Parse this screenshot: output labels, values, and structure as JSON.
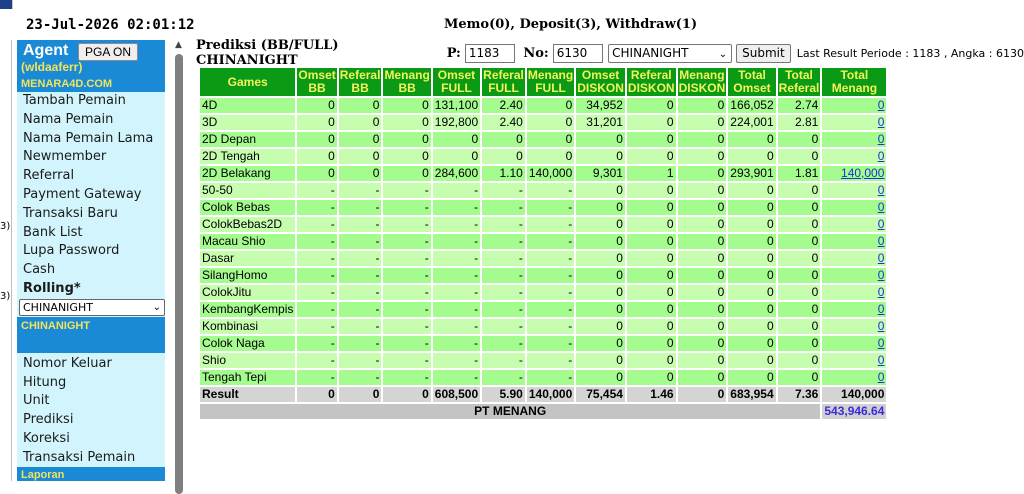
{
  "clock": "23-Jul-2026 02:01:12",
  "header": {
    "memo": "Memo(0), Deposit(3), Withdraw(1)"
  },
  "left_edge": {
    "ticks": [
      "3)",
      "3)"
    ]
  },
  "sidebar": {
    "agent_label": "Agent",
    "pga_button": "PGA ON",
    "username": "(wldaaferr)",
    "site": "MENARA4D.COM",
    "menu1": [
      "Tambah Pemain",
      "Nama Pemain",
      "Nama Pemain Lama",
      "Newmember",
      "Referral",
      "Payment Gateway",
      "Transaksi Baru",
      "Bank List",
      "Lupa Password",
      "Cash"
    ],
    "rolling": "Rolling*",
    "market_select": "CHINANIGHT",
    "market_header": "CHINANIGHT",
    "menu2": [
      "Nomor Keluar",
      "Hitung",
      "Unit",
      "Prediksi",
      "Koreksi",
      "Transaksi Pemain"
    ],
    "laporan": "Laporan"
  },
  "form": {
    "title": "Prediksi (BB/FULL) CHINANIGHT",
    "p_label": "P:",
    "p_value": "1183",
    "no_label": "No:",
    "no_value": "6130",
    "market": "CHINANIGHT",
    "submit": "Submit",
    "last_result": "Last Result Periode : 1183 , Angka : 6130"
  },
  "table": {
    "headers": [
      [
        "Games"
      ],
      [
        "Omset",
        "BB"
      ],
      [
        "Referal",
        "BB"
      ],
      [
        "Menang",
        "BB"
      ],
      [
        "Omset",
        "FULL"
      ],
      [
        "Referal",
        "FULL"
      ],
      [
        "Menang",
        "FULL"
      ],
      [
        "Omset",
        "DISKON"
      ],
      [
        "Referal",
        "DISKON"
      ],
      [
        "Menang",
        "DISKON"
      ],
      [
        "Total",
        "Omset"
      ],
      [
        "Total",
        "Referal"
      ],
      [
        "Total",
        "Menang"
      ]
    ],
    "rows": [
      [
        "4D",
        "0",
        "0",
        "0",
        "131,100",
        "2.40",
        "0",
        "34,952",
        "0",
        "0",
        "166,052",
        "2.74",
        "0"
      ],
      [
        "3D",
        "0",
        "0",
        "0",
        "192,800",
        "2.40",
        "0",
        "31,201",
        "0",
        "0",
        "224,001",
        "2.81",
        "0"
      ],
      [
        "2D Depan",
        "0",
        "0",
        "0",
        "0",
        "0",
        "0",
        "0",
        "0",
        "0",
        "0",
        "0",
        "0"
      ],
      [
        "2D Tengah",
        "0",
        "0",
        "0",
        "0",
        "0",
        "0",
        "0",
        "0",
        "0",
        "0",
        "0",
        "0"
      ],
      [
        "2D Belakang",
        "0",
        "0",
        "0",
        "284,600",
        "1.10",
        "140,000",
        "9,301",
        "1",
        "0",
        "293,901",
        "1.81",
        "140,000"
      ],
      [
        "50-50",
        "-",
        "-",
        "-",
        "-",
        "-",
        "-",
        "0",
        "0",
        "0",
        "0",
        "0",
        "0"
      ],
      [
        "Colok Bebas",
        "-",
        "-",
        "-",
        "-",
        "-",
        "-",
        "0",
        "0",
        "0",
        "0",
        "0",
        "0"
      ],
      [
        "ColokBebas2D",
        "-",
        "-",
        "-",
        "-",
        "-",
        "-",
        "0",
        "0",
        "0",
        "0",
        "0",
        "0"
      ],
      [
        "Macau Shio",
        "-",
        "-",
        "-",
        "-",
        "-",
        "-",
        "0",
        "0",
        "0",
        "0",
        "0",
        "0"
      ],
      [
        "Dasar",
        "-",
        "-",
        "-",
        "-",
        "-",
        "-",
        "0",
        "0",
        "0",
        "0",
        "0",
        "0"
      ],
      [
        "SilangHomo",
        "-",
        "-",
        "-",
        "-",
        "-",
        "-",
        "0",
        "0",
        "0",
        "0",
        "0",
        "0"
      ],
      [
        "ColokJitu",
        "-",
        "-",
        "-",
        "-",
        "-",
        "-",
        "0",
        "0",
        "0",
        "0",
        "0",
        "0"
      ],
      [
        "KembangKempis",
        "-",
        "-",
        "-",
        "-",
        "-",
        "-",
        "0",
        "0",
        "0",
        "0",
        "0",
        "0"
      ],
      [
        "Kombinasi",
        "-",
        "-",
        "-",
        "-",
        "-",
        "-",
        "0",
        "0",
        "0",
        "0",
        "0",
        "0"
      ],
      [
        "Colok Naga",
        "-",
        "-",
        "-",
        "-",
        "-",
        "-",
        "0",
        "0",
        "0",
        "0",
        "0",
        "0"
      ],
      [
        "Shio",
        "-",
        "-",
        "-",
        "-",
        "-",
        "-",
        "0",
        "0",
        "0",
        "0",
        "0",
        "0"
      ],
      [
        "Tengah Tepi",
        "-",
        "-",
        "-",
        "-",
        "-",
        "-",
        "0",
        "0",
        "0",
        "0",
        "0",
        "0"
      ]
    ],
    "result": [
      "Result",
      "0",
      "0",
      "0",
      "608,500",
      "5.90",
      "140,000",
      "75,454",
      "1.46",
      "0",
      "683,954",
      "7.36",
      "140,000"
    ],
    "pt_label": "PT MENANG",
    "pt_value": "543,946.64"
  },
  "colors": {
    "header_green": "#0b9a16",
    "header_text": "#f3f35a",
    "row_odd": "#a4fb8e",
    "row_even": "#c6fdae",
    "sidebar_bg": "#d2f5fd",
    "sidebar_accent": "#1a8ad6",
    "link": "#1a35d4"
  }
}
